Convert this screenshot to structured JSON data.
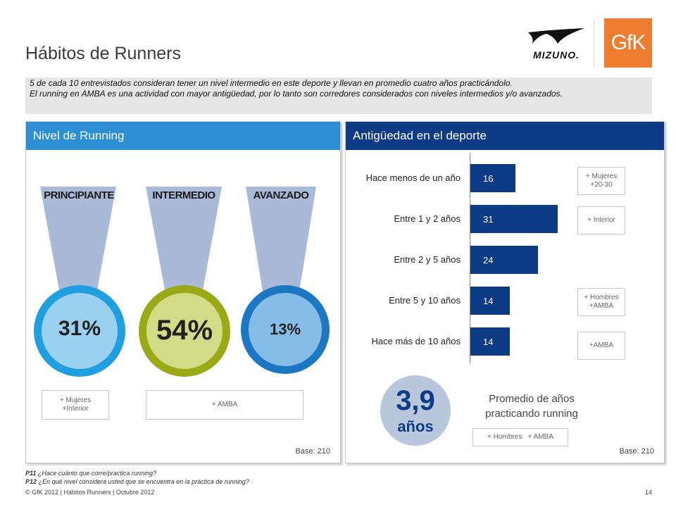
{
  "title": "Hábitos de Runners",
  "logos": {
    "brand": "Mizuno",
    "brand_mark": "MIZUNO.",
    "agency": "GfK",
    "agency_mark": "GfK"
  },
  "summary": {
    "line1": "5 de cada 10 entrevistados consideran tener un nivel intermedio en este deporte y llevan en promedio cuatro años practicándolo.",
    "line2": "El running en AMBA es una actividad con mayor antigüedad, por lo tanto son corredores considerados con niveles intermedios y/o avanzados."
  },
  "left_panel": {
    "title": "Nivel de Running",
    "base": "Base: 210",
    "notes": [
      "+ Mujeres\n+Interior",
      "+ AMBA"
    ]
  },
  "right_panel": {
    "title": "Antigüedad en el deporte",
    "base": "Base: 210",
    "notes": [
      "+ Mujeres\n+20-30",
      "+ Interior",
      "+ Hombres\n+AMBA",
      "+AMBA"
    ],
    "average": {
      "value": "3,9",
      "unit": "años",
      "caption": "Promedio de años practicando running",
      "note": "+ Hombres   + AMBA"
    }
  },
  "colors": {
    "principiante": "#1f9ee0",
    "intermedio": "#9aaa17",
    "avanzado": "#1c78c2",
    "funnel": "#a9bad8",
    "bar": "#0e3b86",
    "left_header": "#2c8fd4",
    "right_header": "#0e3b86"
  },
  "chart_data": [
    {
      "type": "pie",
      "title": "Nivel de Running",
      "categories": [
        "PRINCIPIANTE",
        "INTERMEDIO",
        "AVANZADO"
      ],
      "values": [
        31,
        54,
        13
      ],
      "value_labels": [
        "31%",
        "54%",
        "13%"
      ],
      "unit": "%"
    },
    {
      "type": "bar",
      "orientation": "horizontal",
      "title": "Antigüedad en el deporte",
      "categories": [
        "Hace menos de un año",
        "Entre 1 y 2 años",
        "Entre 2 y 5 años",
        "Entre 5 y 10 años",
        "Hace más de 10 años"
      ],
      "values": [
        16,
        31,
        24,
        14,
        14
      ],
      "value_labels": [
        "16",
        "31",
        "24",
        "14",
        "14"
      ],
      "xlim": [
        0,
        40
      ],
      "grid": false,
      "legend": "none"
    }
  ],
  "footnotes": {
    "p11_code": "P11",
    "p11_text": "¿Hace cuánto que corre/practica running?",
    "p12_code": "P12",
    "p12_text": "¿En qué nivel considera usted que se encuentra en la práctica de running?"
  },
  "footer": "© GfK 2012 | Hábitos Runners  | Octubre 2012",
  "page_number": "14"
}
